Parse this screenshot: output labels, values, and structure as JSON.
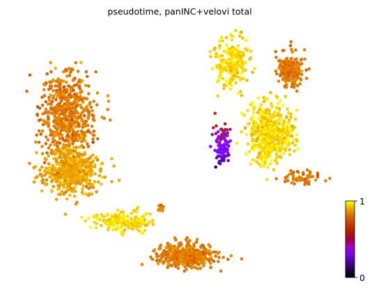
{
  "chart_data": {
    "type": "scatter",
    "title": "pseudotime, panINC+velovi total",
    "xlabel": "",
    "ylabel": "",
    "axes_visible": false,
    "grid": false,
    "colormap": "gnuplot",
    "colorbar": {
      "min_label": "0",
      "max_label": "1",
      "range": [
        0,
        1
      ],
      "placement": "right"
    },
    "clusters": [
      {
        "name": "left-upper-loop",
        "center": [
          0.15,
          0.64
        ],
        "spread": [
          0.08,
          0.18
        ],
        "n": 620,
        "value": 0.78
      },
      {
        "name": "left-lower-blob",
        "center": [
          0.16,
          0.42
        ],
        "spread": [
          0.09,
          0.09
        ],
        "n": 520,
        "value": 0.86
      },
      {
        "name": "bridge-to-bottom",
        "center": [
          0.32,
          0.21
        ],
        "spread": [
          0.09,
          0.04
        ],
        "n": 180,
        "value": 0.97
      },
      {
        "name": "bottom-right-arm",
        "center": [
          0.52,
          0.07
        ],
        "spread": [
          0.09,
          0.05
        ],
        "n": 420,
        "value": 0.78
      },
      {
        "name": "small-island",
        "center": [
          0.44,
          0.26
        ],
        "spread": [
          0.01,
          0.02
        ],
        "n": 14,
        "value": 0.8
      },
      {
        "name": "upper-right-left-lobe",
        "center": [
          0.66,
          0.86
        ],
        "spread": [
          0.05,
          0.1
        ],
        "n": 230,
        "value": 0.95
      },
      {
        "name": "upper-right-right-lobe",
        "center": [
          0.84,
          0.83
        ],
        "spread": [
          0.04,
          0.06
        ],
        "n": 210,
        "value": 0.78
      },
      {
        "name": "right-central-mass",
        "center": [
          0.78,
          0.57
        ],
        "spread": [
          0.07,
          0.12
        ],
        "n": 520,
        "value": 0.95
      },
      {
        "name": "right-tail",
        "center": [
          0.88,
          0.39
        ],
        "spread": [
          0.06,
          0.03
        ],
        "n": 60,
        "value": 0.78
      },
      {
        "name": "early-stem-branch",
        "center": [
          0.63,
          0.52
        ],
        "spread": [
          0.025,
          0.09
        ],
        "n": 95,
        "value": 0.25
      }
    ]
  }
}
